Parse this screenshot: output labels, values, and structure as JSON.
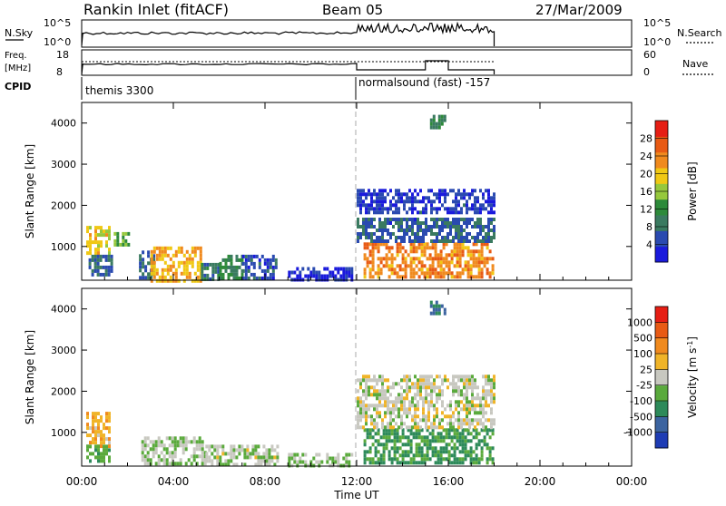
{
  "header": {
    "station": "Rankin Inlet (fitACF)",
    "beam": "Beam 05",
    "date": "27/Mar/2009"
  },
  "noise_panel": {
    "left_label": "N.Sky",
    "left_ticks": [
      "10^5",
      "10^0"
    ],
    "right_ticks": [
      "10^5",
      "10^0"
    ],
    "right_label": "N.Search"
  },
  "freq_panel": {
    "left_label_1": "Freq.",
    "left_label_2": "[MHz]",
    "left_ticks": [
      "18",
      "8"
    ],
    "right_ticks": [
      "60",
      "0"
    ],
    "right_label": "Nave"
  },
  "cpid": {
    "label": "CPID",
    "segments": [
      {
        "name": "themis 3300",
        "start_hour": 0
      },
      {
        "name": "normalsound (fast) -157",
        "start_hour": 12
      }
    ]
  },
  "colors": {
    "power_scale": [
      "#1a1adc",
      "#2a4ab0",
      "#3a7a60",
      "#2d8a3a",
      "#96c83c",
      "#f0c814",
      "#f08a1e",
      "#e85a14",
      "#e61e14"
    ],
    "velocity_scale": [
      "#1e3cb4",
      "#3c64a0",
      "#2d8a5a",
      "#5aaa3c",
      "#c8c8c0",
      "#f0b428",
      "#f08a1e",
      "#e85a14",
      "#e61e14"
    ]
  },
  "chart_data": [
    {
      "type": "heatmap",
      "quantity": "Power",
      "xlabel": "Time UT",
      "ylabel": "Slant Range [km]",
      "xlim": [
        0,
        24
      ],
      "ylim": [
        180,
        4500
      ],
      "x_ticks": [
        "00:00",
        "04:00",
        "08:00",
        "12:00",
        "16:00",
        "20:00",
        "00:00"
      ],
      "y_ticks": [
        1000,
        2000,
        3000,
        4000
      ],
      "colorbar_label": "Power [dB]",
      "colorbar_ticks": [
        "28",
        "24",
        "20",
        "16",
        "12",
        "8",
        "4"
      ],
      "colorbar_range": [
        0,
        30
      ],
      "regions": [
        {
          "t": [
            0.2,
            1.2
          ],
          "r": [
            800,
            1500
          ],
          "value": 18
        },
        {
          "t": [
            0.3,
            1.3
          ],
          "r": [
            300,
            800
          ],
          "value": 6
        },
        {
          "t": [
            1.4,
            2.0
          ],
          "r": [
            1050,
            1350
          ],
          "value": 14
        },
        {
          "t": [
            2.5,
            3.2
          ],
          "r": [
            200,
            900
          ],
          "value": 6
        },
        {
          "t": [
            3.0,
            5.2
          ],
          "r": [
            200,
            1000
          ],
          "value": 20
        },
        {
          "t": [
            5.2,
            6.0
          ],
          "r": [
            200,
            600
          ],
          "value": 8
        },
        {
          "t": [
            6.0,
            7.0
          ],
          "r": [
            200,
            800
          ],
          "value": 10
        },
        {
          "t": [
            7.0,
            8.5
          ],
          "r": [
            200,
            800
          ],
          "value": 5
        },
        {
          "t": [
            9.0,
            11.8
          ],
          "r": [
            200,
            500
          ],
          "value": 3
        },
        {
          "t": [
            12.3,
            18.0
          ],
          "r": [
            250,
            1100
          ],
          "value": 22
        },
        {
          "t": [
            12.0,
            18.0
          ],
          "r": [
            1100,
            1700
          ],
          "value": 6
        },
        {
          "t": [
            12.0,
            18.0
          ],
          "r": [
            1800,
            2400
          ],
          "value": 4
        },
        {
          "t": [
            15.2,
            15.8
          ],
          "r": [
            3900,
            4200
          ],
          "value": 9
        }
      ]
    },
    {
      "type": "heatmap",
      "quantity": "Velocity",
      "xlabel": "Time UT",
      "ylabel": "Slant Range [km]",
      "xlim": [
        0,
        24
      ],
      "ylim": [
        180,
        4500
      ],
      "x_ticks": [
        "00:00",
        "04:00",
        "08:00",
        "12:00",
        "16:00",
        "20:00",
        "00:00"
      ],
      "y_ticks": [
        1000,
        2000,
        3000,
        4000
      ],
      "colorbar_label": "Velocity [m s-1]",
      "colorbar_ticks": [
        "1000",
        "500",
        "100",
        "25",
        "-25",
        "-100",
        "-500",
        "-1000"
      ],
      "colorbar_range": [
        -1200,
        1200
      ],
      "regions": [
        {
          "t": [
            0.2,
            1.2
          ],
          "r": [
            700,
            1500
          ],
          "value": 300
        },
        {
          "t": [
            0.2,
            1.2
          ],
          "r": [
            300,
            700
          ],
          "value": -300
        },
        {
          "t": [
            2.6,
            5.4
          ],
          "r": [
            200,
            900
          ],
          "value": -80
        },
        {
          "t": [
            5.4,
            8.5
          ],
          "r": [
            200,
            700
          ],
          "value": -60
        },
        {
          "t": [
            9.0,
            11.8
          ],
          "r": [
            200,
            500
          ],
          "value": -150
        },
        {
          "t": [
            12.3,
            18.0
          ],
          "r": [
            300,
            1100
          ],
          "value": -450
        },
        {
          "t": [
            12.0,
            18.0
          ],
          "r": [
            1100,
            2400
          ],
          "value": 0
        },
        {
          "t": [
            15.2,
            15.8
          ],
          "r": [
            3900,
            4200
          ],
          "value": -700
        }
      ]
    }
  ]
}
